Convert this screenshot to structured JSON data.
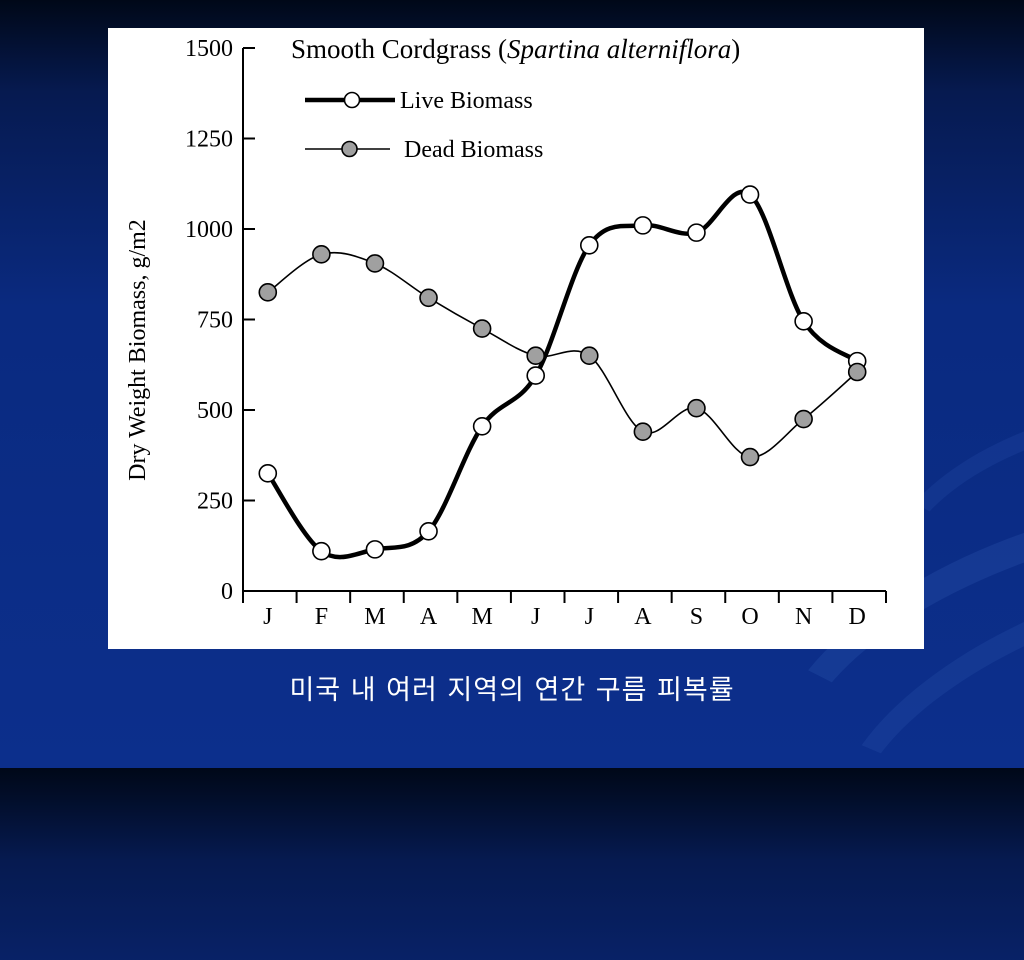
{
  "slide": {
    "caption": "미국 내 여러 지역의 연간 구름 피복률"
  },
  "chart_data": {
    "type": "line",
    "title_prefix": "Smooth Cordgrass (",
    "title_italic": "Spartina alterniflora",
    "title_suffix": ")",
    "ylabel": "Dry Weight Biomass, g/m2",
    "xlabel": "",
    "ylim": [
      0,
      1500
    ],
    "yticks": [
      "0",
      "250",
      "500",
      "750",
      "1000",
      "1250",
      "1500"
    ],
    "yticks_values": [
      0,
      250,
      500,
      750,
      1000,
      1250,
      1500
    ],
    "categories": [
      "J",
      "F",
      "M",
      "A",
      "M",
      "J",
      "J",
      "A",
      "S",
      "O",
      "N",
      "D"
    ],
    "grid": false,
    "legend_position": "top-left",
    "series": [
      {
        "name": "Live Biomass",
        "marker": "open-circle",
        "line": "thick",
        "color": "#000000",
        "values": [
          325,
          110,
          115,
          165,
          455,
          595,
          955,
          1010,
          990,
          1095,
          745,
          635
        ]
      },
      {
        "name": "Dead Biomass",
        "marker": "filled-circle",
        "line": "thin",
        "color": "#000000",
        "marker_fill": "#a0a0a0",
        "values": [
          825,
          930,
          905,
          810,
          725,
          650,
          650,
          440,
          505,
          370,
          475,
          605
        ]
      }
    ]
  }
}
